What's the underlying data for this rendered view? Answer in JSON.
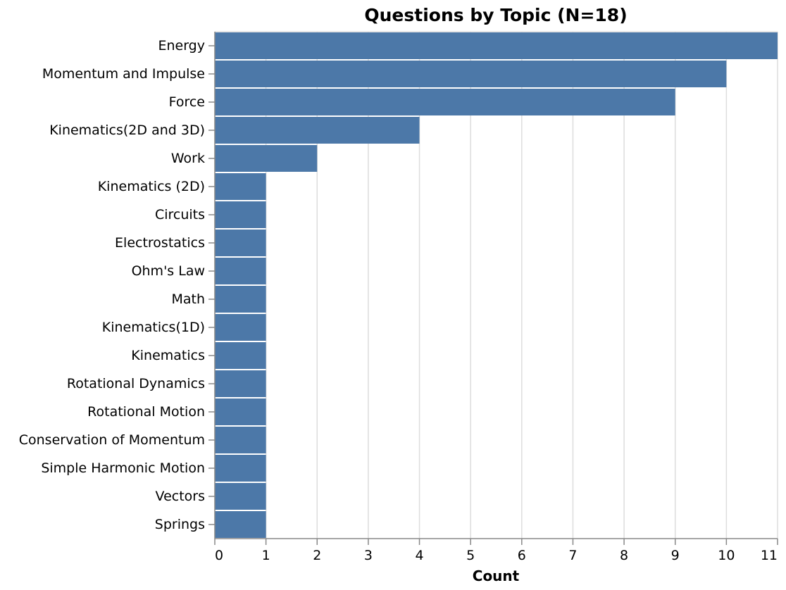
{
  "chart_data": {
    "type": "bar",
    "orientation": "horizontal",
    "title": "Questions by Topic (N=18)",
    "xlabel": "Count",
    "ylabel": "",
    "xlim": [
      0,
      11
    ],
    "x_ticks": [
      0,
      1,
      2,
      3,
      4,
      5,
      6,
      7,
      8,
      9,
      10,
      11
    ],
    "grid": true,
    "categories": [
      "Energy",
      "Momentum and Impulse",
      "Force",
      "Kinematics(2D and 3D)",
      "Work",
      "Kinematics (2D)",
      "Circuits",
      "Electrostatics",
      "Ohm's Law",
      "Math",
      "Kinematics(1D)",
      "Kinematics",
      "Rotational Dynamics",
      "Rotational Motion",
      "Conservation of Momentum",
      "Simple Harmonic Motion",
      "Vectors",
      "Springs"
    ],
    "values": [
      11,
      10,
      9,
      4,
      2,
      1,
      1,
      1,
      1,
      1,
      1,
      1,
      1,
      1,
      1,
      1,
      1,
      1
    ],
    "colors": {
      "bar": "#4c78a8",
      "grid": "#dddddd",
      "axis": "#888888"
    }
  }
}
